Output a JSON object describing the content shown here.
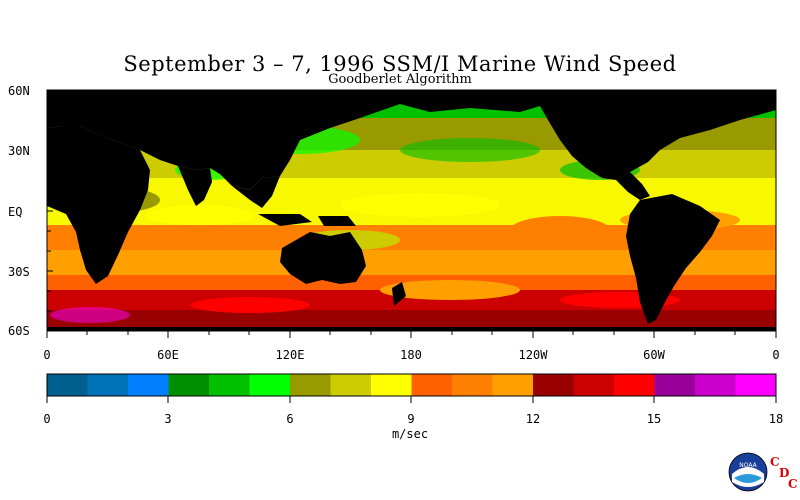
{
  "title": "September 3 – 7, 1996 SSM/I Marine Wind Speed",
  "subtitle": "Goodberlet Algorithm",
  "lat_labels": [
    "60N",
    "30N",
    "EQ",
    "30S",
    "60S"
  ],
  "lon_labels": [
    "0",
    "60E",
    "120E",
    "180",
    "120W",
    "60W",
    "0"
  ],
  "colorbar": {
    "tick_labels": [
      "0",
      "3",
      "6",
      "9",
      "12",
      "15",
      "18"
    ],
    "units": "m/sec",
    "colors": [
      "#005f8f",
      "#0073b8",
      "#007fff",
      "#008f00",
      "#00c000",
      "#00ff00",
      "#999900",
      "#cccc00",
      "#ffff00",
      "#ff6000",
      "#ff8000",
      "#ffa000",
      "#990000",
      "#cc0000",
      "#ff0000",
      "#990099",
      "#cc00cc",
      "#ff00ff"
    ]
  },
  "logo": {
    "icon": "noaa-logo",
    "letters": [
      "C",
      "D",
      "C"
    ],
    "seal_text": "NOAA"
  }
}
